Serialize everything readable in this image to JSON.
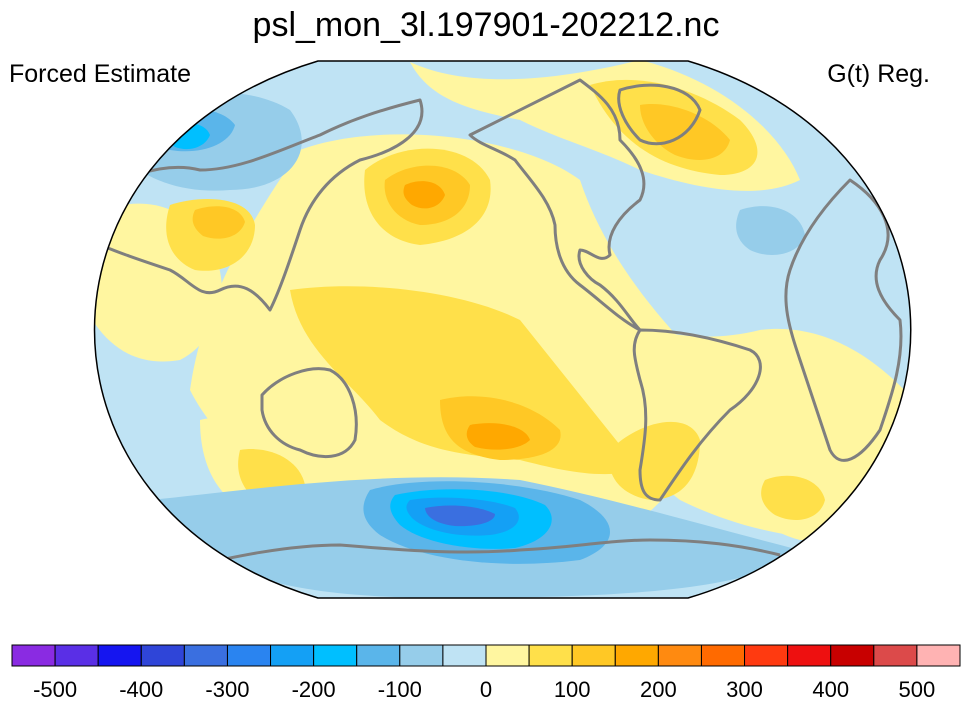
{
  "figure": {
    "title": "psl_mon_3l.197901-202212.nc",
    "left_label": "Forced Estimate",
    "right_label": "G(t) Reg.",
    "projection": "robinson"
  },
  "colorbar": {
    "colors": [
      "#8a2be2",
      "#5a2fe6",
      "#1515f0",
      "#2f45d8",
      "#3a6fe0",
      "#2a84f0",
      "#14a0f5",
      "#00bfff",
      "#5ab5ea",
      "#96cdea",
      "#bfe3f4",
      "#fff6a0",
      "#ffe04a",
      "#ffc825",
      "#ffa800",
      "#ff8a10",
      "#ff6a00",
      "#ff3a10",
      "#ee1010",
      "#c80000",
      "#dc4a4a",
      "#ffb3b3"
    ],
    "tick_labels": [
      "-500",
      "-400",
      "-300",
      "-200",
      "-100",
      "0",
      "100",
      "200",
      "300",
      "400",
      "500"
    ],
    "tick_values": [
      -500,
      -400,
      -300,
      -200,
      -100,
      0,
      100,
      200,
      300,
      400,
      500
    ],
    "range": [
      -550,
      550
    ],
    "interval": 50
  },
  "map_colors": {
    "ocean_base": "#bfe3f4",
    "pale_yellow": "#fff6a0",
    "yellow": "#ffe04a",
    "gold": "#ffc825",
    "orange": "#ffa800",
    "light_blue": "#96cdea",
    "mid_blue": "#5ab5ea",
    "cyan": "#00bfff",
    "blue": "#14a0f5",
    "deep_blue": "#3a6fe0",
    "coast": "#7f7f7f"
  }
}
